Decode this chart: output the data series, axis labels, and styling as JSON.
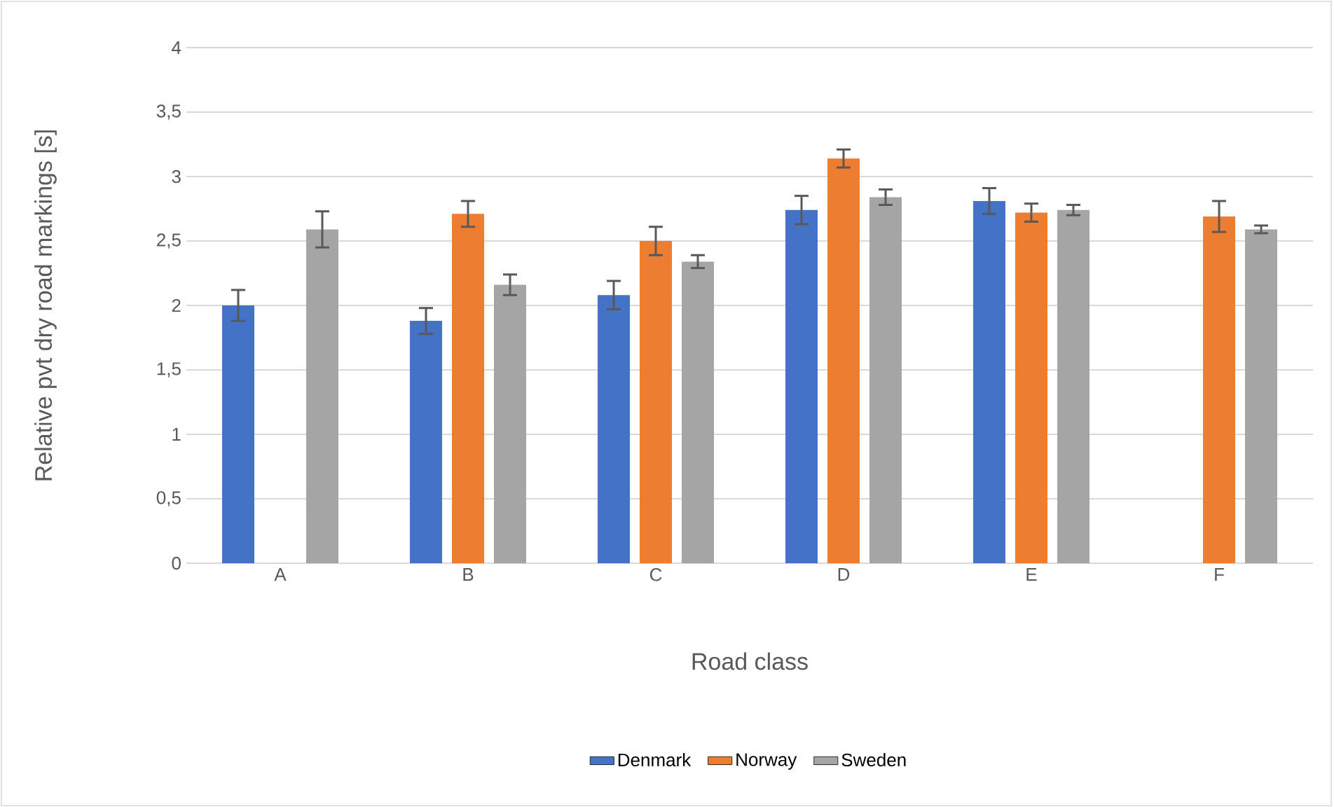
{
  "chart_data": {
    "type": "bar",
    "xlabel": "Road class",
    "ylabel": "Relative pvt dry road markings [s]",
    "categories": [
      "A",
      "B",
      "C",
      "D",
      "E",
      "F"
    ],
    "series": [
      {
        "name": "Denmark",
        "color": "#4472c4",
        "values": [
          2.0,
          1.88,
          2.08,
          2.74,
          2.81,
          null
        ],
        "errors": [
          0.12,
          0.1,
          0.11,
          0.11,
          0.1,
          null
        ]
      },
      {
        "name": "Norway",
        "color": "#ed7d31",
        "values": [
          null,
          2.71,
          2.5,
          3.14,
          2.72,
          2.69
        ],
        "errors": [
          null,
          0.1,
          0.11,
          0.07,
          0.07,
          0.12
        ]
      },
      {
        "name": "Sweden",
        "color": "#a5a5a5",
        "values": [
          2.59,
          2.16,
          2.34,
          2.84,
          2.74,
          2.59
        ],
        "errors": [
          0.14,
          0.08,
          0.05,
          0.06,
          0.04,
          0.03
        ]
      }
    ],
    "ylim": [
      0,
      4
    ],
    "yticks": [
      0,
      {
        "value": 0.5,
        "label": "0,5"
      },
      1,
      {
        "value": 1.5,
        "label": "1,5"
      },
      2,
      {
        "value": 2.5,
        "label": "2,5"
      },
      3,
      {
        "value": 3.5,
        "label": "3,5"
      },
      4
    ],
    "grid": "y",
    "legend": "bottom"
  }
}
